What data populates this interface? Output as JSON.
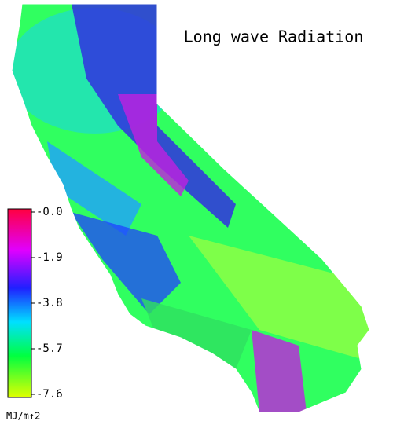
{
  "title": "Long wave Radiation",
  "colorbar": {
    "lim": [
      -7.6,
      0
    ],
    "ticks": [
      {
        "value": 0,
        "label": "-0.0"
      },
      -1.9,
      -3.8,
      -5.7,
      -7.6
    ],
    "unit": "MJ/m↑2"
  }
}
